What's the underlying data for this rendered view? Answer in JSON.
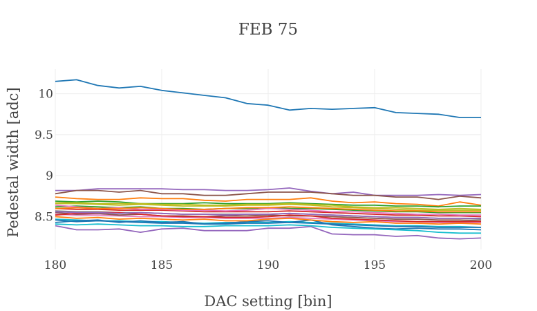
{
  "chart_data": {
    "type": "line",
    "title": "FEB 75",
    "xlabel": "DAC setting [bin]",
    "ylabel": "Pedestal width [adc]",
    "xlim": [
      180,
      200
    ],
    "ylim": [
      8.1,
      10.3
    ],
    "xticks": [
      180,
      185,
      190,
      195,
      200
    ],
    "yticks": [
      8.5,
      9,
      9.5,
      10
    ],
    "ytick_labels": [
      "8.5",
      "9",
      "9.5",
      "10"
    ],
    "legend": "none",
    "grid": true,
    "x": [
      180,
      181,
      182,
      183,
      184,
      185,
      186,
      187,
      188,
      189,
      190,
      191,
      192,
      193,
      194,
      195,
      196,
      197,
      198,
      199,
      200
    ],
    "series": [
      {
        "color": "#1f77b4",
        "values": [
          10.15,
          10.17,
          10.1,
          10.07,
          10.09,
          10.04,
          10.01,
          9.98,
          9.95,
          9.88,
          9.86,
          9.8,
          9.82,
          9.81,
          9.82,
          9.83,
          9.77,
          9.76,
          9.75,
          9.71,
          9.71
        ]
      },
      {
        "color": "#9467bd",
        "values": [
          8.82,
          8.82,
          8.84,
          8.84,
          8.84,
          8.84,
          8.83,
          8.83,
          8.82,
          8.82,
          8.83,
          8.85,
          8.81,
          8.78,
          8.8,
          8.76,
          8.76,
          8.76,
          8.77,
          8.76,
          8.77
        ]
      },
      {
        "color": "#8c564b",
        "values": [
          8.78,
          8.82,
          8.82,
          8.8,
          8.82,
          8.78,
          8.78,
          8.76,
          8.76,
          8.78,
          8.8,
          8.8,
          8.8,
          8.78,
          8.76,
          8.76,
          8.74,
          8.74,
          8.71,
          8.75,
          8.73
        ]
      },
      {
        "color": "#ff7f0e",
        "values": [
          8.74,
          8.72,
          8.71,
          8.71,
          8.73,
          8.72,
          8.72,
          8.7,
          8.69,
          8.71,
          8.71,
          8.71,
          8.73,
          8.69,
          8.67,
          8.68,
          8.66,
          8.65,
          8.63,
          8.68,
          8.64
        ]
      },
      {
        "color": "#2ca02c",
        "values": [
          8.69,
          8.68,
          8.69,
          8.68,
          8.66,
          8.66,
          8.66,
          8.67,
          8.66,
          8.66,
          8.66,
          8.67,
          8.66,
          8.65,
          8.64,
          8.64,
          8.63,
          8.63,
          8.62,
          8.63,
          8.63
        ]
      },
      {
        "color": "#bcbd22",
        "values": [
          8.66,
          8.66,
          8.65,
          8.64,
          8.65,
          8.64,
          8.63,
          8.63,
          8.63,
          8.64,
          8.64,
          8.65,
          8.64,
          8.62,
          8.61,
          8.6,
          8.59,
          8.58,
          8.58,
          8.58,
          8.58
        ]
      },
      {
        "color": "#d62728",
        "values": [
          8.6,
          8.59,
          8.59,
          8.58,
          8.58,
          8.58,
          8.57,
          8.56,
          8.56,
          8.56,
          8.56,
          8.57,
          8.56,
          8.55,
          8.54,
          8.53,
          8.52,
          8.52,
          8.51,
          8.51,
          8.5
        ]
      },
      {
        "color": "#17becf",
        "values": [
          8.47,
          8.46,
          8.45,
          8.45,
          8.44,
          8.44,
          8.43,
          8.42,
          8.43,
          8.43,
          8.43,
          8.44,
          8.43,
          8.42,
          8.41,
          8.4,
          8.39,
          8.39,
          8.38,
          8.38,
          8.37
        ]
      },
      {
        "color": "#e377c2",
        "values": [
          8.53,
          8.52,
          8.52,
          8.51,
          8.5,
          8.5,
          8.49,
          8.49,
          8.48,
          8.48,
          8.48,
          8.49,
          8.48,
          8.47,
          8.46,
          8.45,
          8.44,
          8.44,
          8.43,
          8.43,
          8.43
        ]
      },
      {
        "color": "#7f7f7f",
        "values": [
          8.57,
          8.56,
          8.56,
          8.55,
          8.55,
          8.54,
          8.53,
          8.53,
          8.53,
          8.53,
          8.53,
          8.54,
          8.53,
          8.52,
          8.51,
          8.5,
          8.49,
          8.49,
          8.48,
          8.48,
          8.47
        ]
      },
      {
        "color": "#9467bd",
        "values": [
          8.39,
          8.34,
          8.34,
          8.35,
          8.31,
          8.35,
          8.36,
          8.33,
          8.33,
          8.33,
          8.36,
          8.36,
          8.38,
          8.29,
          8.28,
          8.28,
          8.26,
          8.27,
          8.24,
          8.23,
          8.24
        ]
      },
      {
        "color": "#1f77b4",
        "values": [
          8.43,
          8.45,
          8.46,
          8.43,
          8.45,
          8.43,
          8.44,
          8.41,
          8.42,
          8.44,
          8.45,
          8.43,
          8.46,
          8.4,
          8.38,
          8.36,
          8.35,
          8.36,
          8.35,
          8.35,
          8.34
        ]
      },
      {
        "color": "#ff7f0e",
        "values": [
          8.5,
          8.48,
          8.49,
          8.47,
          8.48,
          8.47,
          8.46,
          8.47,
          8.45,
          8.45,
          8.47,
          8.48,
          8.46,
          8.44,
          8.43,
          8.44,
          8.42,
          8.42,
          8.41,
          8.42,
          8.41
        ]
      },
      {
        "color": "#2ca02c",
        "values": [
          8.62,
          8.63,
          8.62,
          8.61,
          8.62,
          8.6,
          8.6,
          8.59,
          8.6,
          8.6,
          8.61,
          8.6,
          8.6,
          8.59,
          8.58,
          8.57,
          8.56,
          8.56,
          8.55,
          8.55,
          8.55
        ]
      },
      {
        "color": "#8c564b",
        "values": [
          8.55,
          8.53,
          8.54,
          8.52,
          8.53,
          8.51,
          8.51,
          8.5,
          8.51,
          8.51,
          8.52,
          8.51,
          8.51,
          8.5,
          8.49,
          8.48,
          8.47,
          8.47,
          8.46,
          8.46,
          8.45
        ]
      },
      {
        "color": "#bcbd22",
        "values": [
          8.67,
          8.67,
          8.66,
          8.66,
          8.66,
          8.65,
          8.65,
          8.64,
          8.64,
          8.65,
          8.65,
          8.66,
          8.65,
          8.64,
          8.62,
          8.61,
          8.61,
          8.6,
          8.59,
          8.6,
          8.59
        ]
      },
      {
        "color": "#17becf",
        "values": [
          8.41,
          8.4,
          8.41,
          8.4,
          8.39,
          8.39,
          8.38,
          8.38,
          8.39,
          8.39,
          8.39,
          8.4,
          8.39,
          8.37,
          8.36,
          8.35,
          8.34,
          8.33,
          8.31,
          8.3,
          8.3
        ]
      },
      {
        "color": "#d62728",
        "values": [
          8.52,
          8.54,
          8.55,
          8.55,
          8.53,
          8.51,
          8.5,
          8.5,
          8.49,
          8.49,
          8.5,
          8.52,
          8.51,
          8.48,
          8.47,
          8.46,
          8.45,
          8.44,
          8.44,
          8.44,
          8.44
        ]
      },
      {
        "color": "#e377c2",
        "values": [
          8.64,
          8.62,
          8.6,
          8.61,
          8.59,
          8.59,
          8.58,
          8.58,
          8.57,
          8.58,
          8.6,
          8.59,
          8.58,
          8.56,
          8.56,
          8.55,
          8.54,
          8.53,
          8.53,
          8.52,
          8.52
        ]
      },
      {
        "color": "#1f77b4",
        "values": [
          8.46,
          8.44,
          8.45,
          8.44,
          8.43,
          8.42,
          8.42,
          8.41,
          8.41,
          8.42,
          8.42,
          8.43,
          8.42,
          8.41,
          8.4,
          8.39,
          8.38,
          8.38,
          8.37,
          8.37,
          8.37
        ]
      },
      {
        "color": "#ff7f0e",
        "values": [
          8.6,
          8.61,
          8.6,
          8.6,
          8.61,
          8.6,
          8.59,
          8.59,
          8.6,
          8.61,
          8.61,
          8.62,
          8.61,
          8.6,
          8.59,
          8.58,
          8.57,
          8.57,
          8.56,
          8.56,
          8.56
        ]
      },
      {
        "color": "#9467bd",
        "values": [
          8.56,
          8.55,
          8.55,
          8.54,
          8.55,
          8.54,
          8.53,
          8.53,
          8.52,
          8.53,
          8.53,
          8.54,
          8.53,
          8.52,
          8.51,
          8.5,
          8.49,
          8.49,
          8.48,
          8.48,
          8.48
        ]
      }
    ]
  }
}
